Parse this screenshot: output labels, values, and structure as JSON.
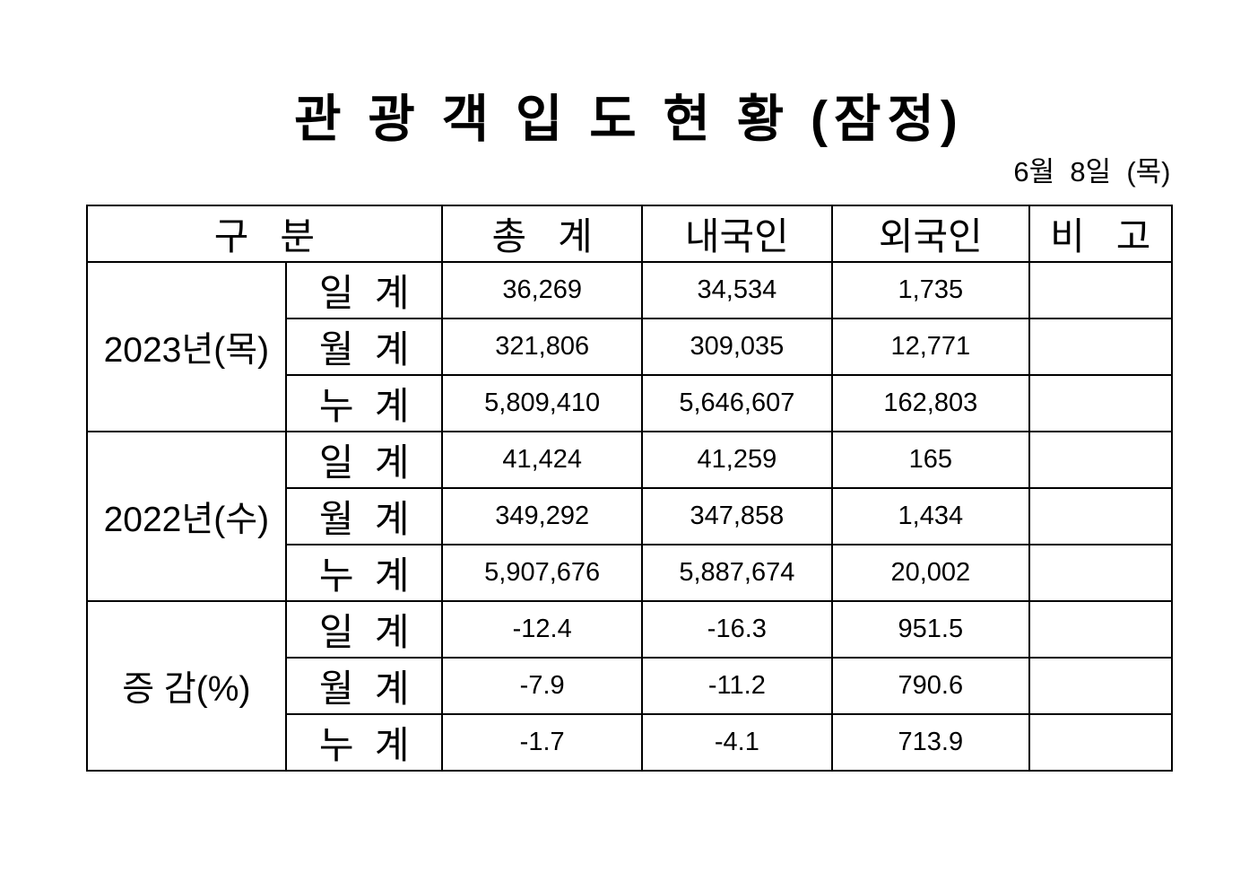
{
  "page": {
    "title": "관 광 객 입 도 현 황 (잠정)",
    "date": "6월  8일  (목)"
  },
  "colors": {
    "background": "#ffffff",
    "text": "#000000",
    "border": "#000000"
  },
  "table": {
    "headers": {
      "category": "구   분",
      "total": "총   계",
      "domestic": "내국인",
      "foreign": "외국인",
      "remarks": "비   고"
    },
    "sections": [
      {
        "group": "2023년(목)",
        "rows": [
          {
            "label": "일  계",
            "total": "36,269",
            "domestic": "34,534",
            "foreign": "1,735",
            "remarks": ""
          },
          {
            "label": "월  계",
            "total": "321,806",
            "domestic": "309,035",
            "foreign": "12,771",
            "remarks": ""
          },
          {
            "label": "누  계",
            "total": "5,809,410",
            "domestic": "5,646,607",
            "foreign": "162,803",
            "remarks": ""
          }
        ]
      },
      {
        "group": "2022년(수)",
        "rows": [
          {
            "label": "일  계",
            "total": "41,424",
            "domestic": "41,259",
            "foreign": "165",
            "remarks": ""
          },
          {
            "label": "월  계",
            "total": "349,292",
            "domestic": "347,858",
            "foreign": "1,434",
            "remarks": ""
          },
          {
            "label": "누  계",
            "total": "5,907,676",
            "domestic": "5,887,674",
            "foreign": "20,002",
            "remarks": ""
          }
        ]
      },
      {
        "group": "증 감(%)",
        "rows": [
          {
            "label": "일  계",
            "total": "-12.4",
            "domestic": "-16.3",
            "foreign": "951.5",
            "remarks": ""
          },
          {
            "label": "월  계",
            "total": "-7.9",
            "domestic": "-11.2",
            "foreign": "790.6",
            "remarks": ""
          },
          {
            "label": "누  계",
            "total": "-1.7",
            "domestic": "-4.1",
            "foreign": "713.9",
            "remarks": ""
          }
        ]
      }
    ]
  }
}
